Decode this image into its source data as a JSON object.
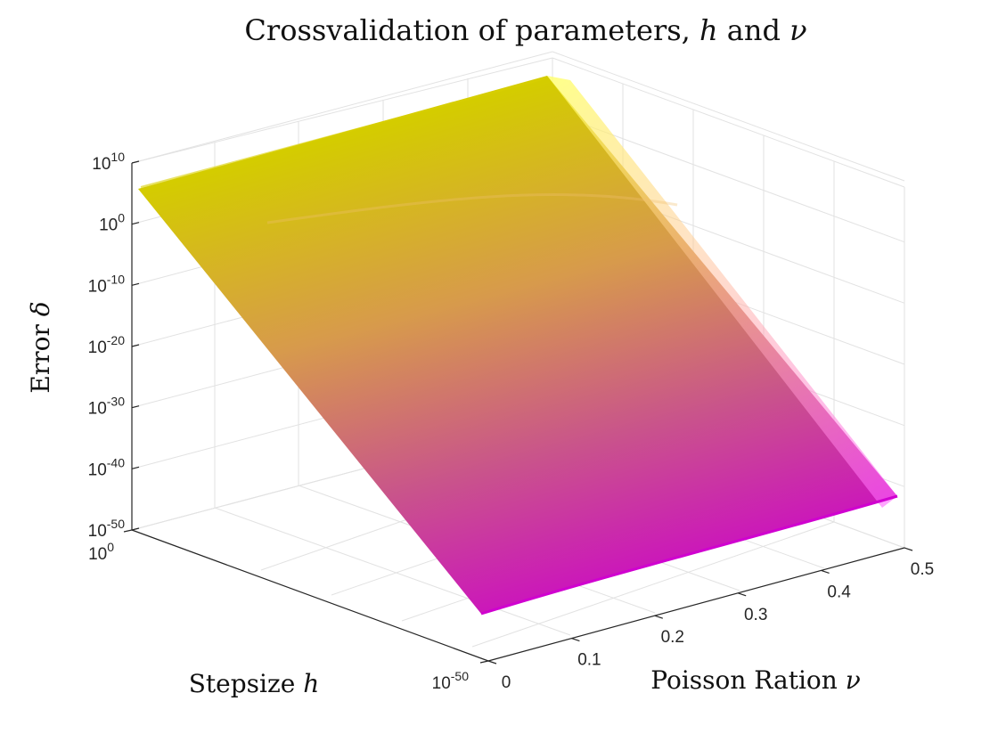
{
  "chart_data": {
    "type": "surface",
    "title": "Crossvalidation of parameters, h and ν",
    "title_parts": {
      "prefix": "Crossvalidation of parameters, ",
      "sym1": "h",
      "mid": " and ",
      "sym2": "ν"
    },
    "zlabel": {
      "text": "Error ",
      "sym": "δ"
    },
    "xlabel": {
      "text": "Stepsize ",
      "sym": "h"
    },
    "ylabel": {
      "text": "Poisson Ration ",
      "sym": "ν"
    },
    "z_ticks": [
      {
        "base": "10",
        "exp": "10",
        "value": 10
      },
      {
        "base": "10",
        "exp": "0",
        "value": 0
      },
      {
        "base": "10",
        "exp": "-10",
        "value": -10
      },
      {
        "base": "10",
        "exp": "-20",
        "value": -20
      },
      {
        "base": "10",
        "exp": "-30",
        "value": -30
      },
      {
        "base": "10",
        "exp": "-40",
        "value": -40
      },
      {
        "base": "10",
        "exp": "-50",
        "value": -50
      }
    ],
    "h_ticks": [
      {
        "base": "10",
        "exp": "0",
        "value": 0
      },
      {
        "base": "10",
        "exp": "-50",
        "value": -50
      }
    ],
    "nu_ticks": [
      {
        "label": "0",
        "value": 0
      },
      {
        "label": "0.1",
        "value": 0.1
      },
      {
        "label": "0.2",
        "value": 0.2
      },
      {
        "label": "0.3",
        "value": 0.3
      },
      {
        "label": "0.4",
        "value": 0.4
      },
      {
        "label": "0.5",
        "value": 0.5
      }
    ],
    "axes": {
      "h_scale": "log",
      "h_range_log10": [
        -50,
        0
      ],
      "nu_range": [
        0,
        0.5
      ],
      "z_scale": "log",
      "z_range_log10": [
        -50,
        10
      ]
    },
    "surface": {
      "description_of_data": "log10 error vs log10 stepsize and Poisson ratio",
      "corners": [
        {
          "log10_h": 0,
          "nu": 0,
          "log10_error": 5
        },
        {
          "log10_h": 0,
          "nu": 0.5,
          "log10_error": 14
        },
        {
          "log10_h": -50,
          "nu": 0,
          "log10_error": -56
        },
        {
          "log10_h": -50,
          "nu": 0.5,
          "log10_error": -44
        }
      ]
    },
    "colormap": {
      "high": "#ffff33",
      "mid": "#e09050",
      "low": "#cc00cc"
    },
    "grid": true
  }
}
